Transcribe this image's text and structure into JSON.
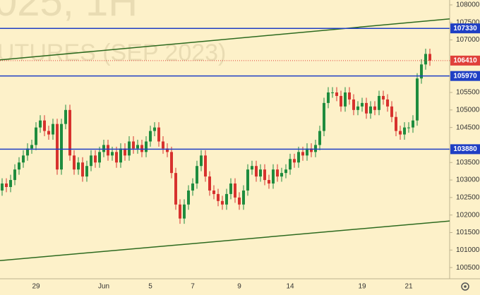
{
  "chart_data": {
    "type": "candlestick",
    "watermark": [
      "025,  1H",
      "UTURES (SEP 2023)"
    ],
    "categories": [
      null,
      null,
      null,
      null,
      null,
      null,
      null,
      null,
      "29",
      null,
      null,
      null,
      null,
      null,
      null,
      null,
      null,
      null,
      null,
      null,
      null,
      null,
      null,
      null,
      "Jun",
      null,
      null,
      null,
      null,
      null,
      null,
      null,
      null,
      null,
      null,
      "5",
      null,
      null,
      null,
      null,
      null,
      null,
      null,
      null,
      null,
      "7",
      null,
      null,
      null,
      null,
      null,
      null,
      null,
      null,
      null,
      null,
      "9",
      null,
      null,
      null,
      null,
      null,
      null,
      null,
      null,
      null,
      null,
      null,
      "14",
      null,
      null,
      null,
      null,
      null,
      null,
      null,
      null,
      null,
      null,
      null,
      null,
      null,
      null,
      null,
      null,
      "19",
      null,
      null,
      null,
      null,
      null,
      null,
      null,
      null,
      null,
      null,
      "21",
      null,
      null,
      null,
      null,
      null
    ],
    "open": [
      102700,
      102900,
      102800,
      103000,
      103300,
      103500,
      103700,
      103900,
      104000,
      104500,
      104700,
      104400,
      104300,
      104600,
      103300,
      104600,
      105000,
      103700,
      103300,
      103500,
      103100,
      103400,
      103700,
      103500,
      103800,
      104000,
      103700,
      103800,
      103500,
      103900,
      103700,
      104100,
      103900,
      104000,
      103800,
      104100,
      104400,
      104500,
      104100,
      103900,
      103800,
      103200,
      102300,
      101900,
      102300,
      102700,
      102900,
      103400,
      103700,
      103100,
      102700,
      102600,
      102400,
      102300,
      102600,
      102900,
      102500,
      102300,
      102700,
      103300,
      103400,
      103100,
      103300,
      103000,
      102900,
      103300,
      103100,
      103200,
      103300,
      103600,
      103500,
      103800,
      103700,
      103900,
      103800,
      104000,
      104400,
      105200,
      105500,
      105500,
      105400,
      105100,
      105500,
      105300,
      105000,
      105100,
      105200,
      104900,
      105100,
      105000,
      105400,
      105300,
      105100,
      104800,
      104400,
      104300,
      104500,
      104500,
      104700,
      105900,
      106300,
      106600
    ],
    "high": [
      103050,
      103050,
      103150,
      103450,
      103650,
      103850,
      104050,
      104150,
      104650,
      104850,
      104850,
      104550,
      104750,
      104750,
      104750,
      105150,
      105150,
      103850,
      103650,
      103650,
      103550,
      103850,
      103850,
      103950,
      104150,
      104150,
      103950,
      103950,
      104050,
      104050,
      104250,
      104250,
      104150,
      104150,
      104250,
      104550,
      104650,
      104650,
      104250,
      104050,
      103950,
      103350,
      102450,
      102450,
      102850,
      103050,
      103550,
      103850,
      103850,
      103250,
      102850,
      102750,
      102550,
      102750,
      103050,
      103050,
      102650,
      102850,
      103450,
      103550,
      103550,
      103450,
      103450,
      103150,
      103450,
      103450,
      103350,
      103450,
      103750,
      103750,
      103950,
      103950,
      104050,
      104050,
      104150,
      104550,
      105350,
      105650,
      105650,
      105650,
      105550,
      105650,
      105650,
      105450,
      105250,
      105350,
      105350,
      105250,
      105250,
      105550,
      105550,
      105450,
      105250,
      104950,
      104550,
      104650,
      104650,
      104850,
      106050,
      106450,
      106750,
      106750
    ],
    "low": [
      102550,
      102650,
      102650,
      102850,
      103150,
      103350,
      103550,
      103750,
      103850,
      104350,
      104250,
      104150,
      104150,
      103150,
      103150,
      104450,
      103550,
      103150,
      103150,
      102950,
      102950,
      103250,
      103350,
      103350,
      103650,
      103550,
      103550,
      103350,
      103350,
      103550,
      103550,
      103750,
      103750,
      103650,
      103650,
      103950,
      104250,
      103950,
      103750,
      103650,
      103050,
      102150,
      101750,
      101750,
      102150,
      102550,
      102750,
      103250,
      102950,
      102550,
      102450,
      102250,
      102150,
      102150,
      102450,
      102350,
      102150,
      102150,
      102550,
      103150,
      102950,
      102950,
      102850,
      102750,
      102750,
      102950,
      102950,
      103050,
      103150,
      103350,
      103350,
      103550,
      103550,
      103650,
      103650,
      103850,
      104250,
      105050,
      105350,
      105250,
      104950,
      104950,
      105150,
      104850,
      104850,
      104950,
      104750,
      104750,
      104850,
      104850,
      105150,
      104950,
      104650,
      104250,
      104150,
      104150,
      104350,
      104350,
      104550,
      105750,
      106150,
      106260
    ],
    "close": [
      102900,
      102800,
      103000,
      103300,
      103500,
      103700,
      103900,
      104000,
      104500,
      104700,
      104400,
      104300,
      104600,
      103300,
      104600,
      105000,
      103700,
      103300,
      103500,
      103100,
      103400,
      103700,
      103500,
      103800,
      104000,
      103700,
      103800,
      103500,
      103900,
      103700,
      104100,
      103900,
      104000,
      103800,
      104100,
      104400,
      104500,
      104100,
      103900,
      103800,
      103200,
      102300,
      101900,
      102300,
      102700,
      102900,
      103400,
      103700,
      103100,
      102700,
      102600,
      102400,
      102300,
      102600,
      102900,
      102500,
      102300,
      102700,
      103300,
      103400,
      103100,
      103300,
      103000,
      102900,
      103300,
      103100,
      103200,
      103300,
      103600,
      103500,
      103800,
      103700,
      103900,
      103800,
      104000,
      104400,
      105200,
      105500,
      105500,
      105400,
      105100,
      105500,
      105300,
      105000,
      105100,
      105200,
      104900,
      105100,
      105000,
      105400,
      105300,
      105100,
      104800,
      104400,
      104300,
      104500,
      104500,
      104700,
      105900,
      106300,
      106600,
      106410
    ],
    "up_color": "#1e8c3e",
    "down_color": "#d7322e",
    "levels": [
      {
        "value": 107330,
        "color": "#1f3fc4"
      },
      {
        "value": 105970,
        "color": "#1f3fc4"
      },
      {
        "value": 103880,
        "color": "#1f3fc4"
      }
    ],
    "trendlines": [
      {
        "values": [
          106430,
          107600
        ],
        "color": "#2d6a1f"
      },
      {
        "values": [
          100700,
          101830
        ],
        "color": "#2d6a1f"
      }
    ],
    "last_price": 106410,
    "last_price_color": "#e0403a",
    "ylim": [
      100180,
      108140
    ],
    "yticks": [
      100500,
      101000,
      101500,
      102000,
      102500,
      103000,
      103500,
      104500,
      105000,
      105500,
      107000,
      107500,
      108000
    ]
  }
}
